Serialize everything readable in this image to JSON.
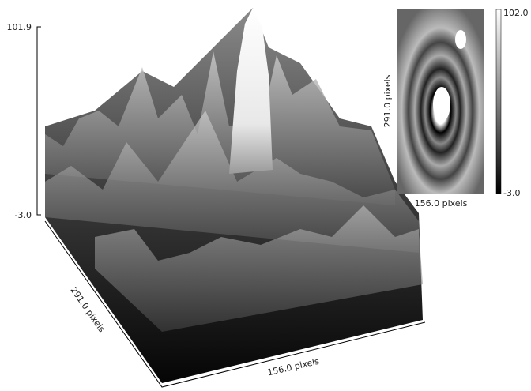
{
  "view3d": {
    "z_max": "101.9",
    "z_min": "-3.0",
    "y_label": "291.0 pixels",
    "x_label": "156.0 pixels"
  },
  "thumbnail": {
    "scale_max": "102.0",
    "scale_min": "-3.0",
    "y_label": "291.0 pixels",
    "x_label": "156.0 pixels"
  }
}
